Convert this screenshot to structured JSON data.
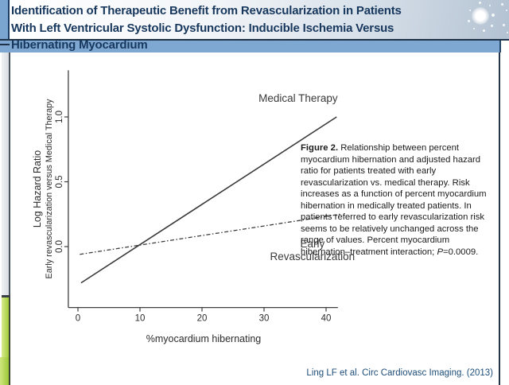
{
  "slide": {
    "title_lines": [
      "Identification of Therapeutic Benefit from Revascularization in Patients",
      "With Left Ventricular Systolic Dysfunction: Inducible Ischemia Versus",
      "Hibernating Myocardium"
    ],
    "citation": "Ling LF et al. Circ Cardiovasc Imaging. (2013)"
  },
  "caption": {
    "label": "Figure 2.",
    "body": " Relationship between percent myocardium hibernation and adjusted hazard ratio for patients treated with early revascularization vs. medical therapy. Risk increases as a function of percent myocardium hibernation in medically treated patients. In patients referred to early revascularization risk seems to be relatively unchanged across the range of values. Percent myocardium hibernation–treatment interaction; ",
    "p_italic": "P",
    "p_rest": "=0.0009."
  },
  "colors": {
    "title_text": "#17375d",
    "highlight_bar": "#7ea8d2",
    "accent_green": "#a3cd3c",
    "accent_gray": "#d8dde2",
    "citation_blue": "#1f4e79",
    "chart_ink": "#3f3f3f"
  },
  "chart_data": {
    "type": "line",
    "title": "",
    "xlabel": "%myocardium hibernating",
    "ylabel_lines": [
      "Log Hazard Ratio",
      "Early revascularization versus Medical Therapy"
    ],
    "xticks": [
      0,
      10,
      20,
      30,
      40
    ],
    "xtick_labels": [
      "0",
      "10",
      "20",
      "30",
      "40"
    ],
    "yticks": [
      0.0,
      0.5,
      1.0
    ],
    "ytick_labels": [
      "0.0",
      "0.5",
      "1.0"
    ],
    "xaxis_span": [
      -1.55,
      41.9
    ],
    "yaxis_span": [
      -0.47,
      1.36
    ],
    "xlim": [
      0,
      41.7
    ],
    "ylim": [
      -0.28,
      1.0
    ],
    "grid": false,
    "legend": "inline-annotations",
    "series": [
      {
        "name": "Medical Therapy",
        "style": "solid",
        "points": [
          [
            0.5,
            -0.28
          ],
          [
            41.7,
            1.0
          ]
        ]
      },
      {
        "name": "Early Revascularization",
        "style": "dashdot",
        "points": [
          [
            0.3,
            -0.06
          ],
          [
            42.3,
            0.25
          ]
        ]
      }
    ],
    "annotations": [
      {
        "text": "Medical Therapy",
        "x": 35.5,
        "y": 1.14
      },
      {
        "text": "Early\nRevascularization",
        "x": 37.8,
        "y": -0.03
      }
    ]
  }
}
